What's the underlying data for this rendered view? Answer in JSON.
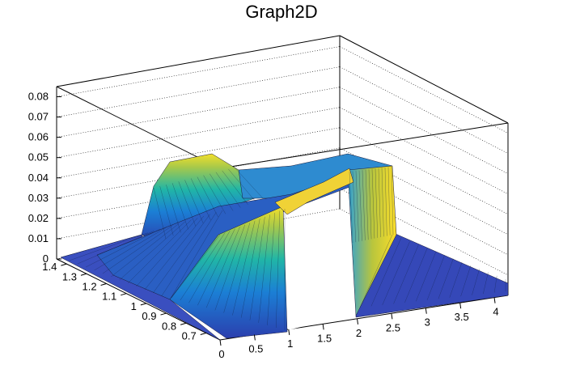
{
  "chart_data": {
    "type": "surface3d",
    "title": "Graph2D",
    "xlabel": "",
    "ylabel": "",
    "zlabel": "",
    "x_ticks": [
      "0",
      "0.5",
      "1",
      "1.5",
      "2",
      "2.5",
      "3",
      "3.5",
      "4"
    ],
    "y_ticks": [
      "0.7",
      "0.8",
      "0.9",
      "1",
      "1.1",
      "1.2",
      "1.3",
      "1.4"
    ],
    "z_ticks": [
      "0",
      "0.01",
      "0.02",
      "0.03",
      "0.04",
      "0.05",
      "0.06",
      "0.07",
      "0.08"
    ],
    "xlim": [
      0,
      4.2
    ],
    "ylim": [
      0.63,
      1.45
    ],
    "zlim": [
      0,
      0.085
    ],
    "grid": true,
    "colormap": "parula",
    "surface_samples": [
      {
        "x": 0.2,
        "y": 1.4,
        "z": 0.0
      },
      {
        "x": 0.3,
        "y": 1.3,
        "z": 0.008
      },
      {
        "x": 0.6,
        "y": 1.35,
        "z": 0.045
      },
      {
        "x": 0.8,
        "y": 1.4,
        "z": 0.052
      },
      {
        "x": 1.0,
        "y": 1.3,
        "z": 0.044
      },
      {
        "x": 1.5,
        "y": 1.25,
        "z": 0.04
      },
      {
        "x": 2.0,
        "y": 1.1,
        "z": 0.046
      },
      {
        "x": 2.0,
        "y": 0.9,
        "z": 0.04
      },
      {
        "x": 2.2,
        "y": 0.7,
        "z": 0.031
      },
      {
        "x": 1.3,
        "y": 0.7,
        "z": 0.028
      },
      {
        "x": 0.9,
        "y": 0.75,
        "z": 0.005
      },
      {
        "x": 3.0,
        "y": 0.9,
        "z": 0.0
      },
      {
        "x": 4.0,
        "y": 0.8,
        "z": 0.0
      }
    ]
  }
}
